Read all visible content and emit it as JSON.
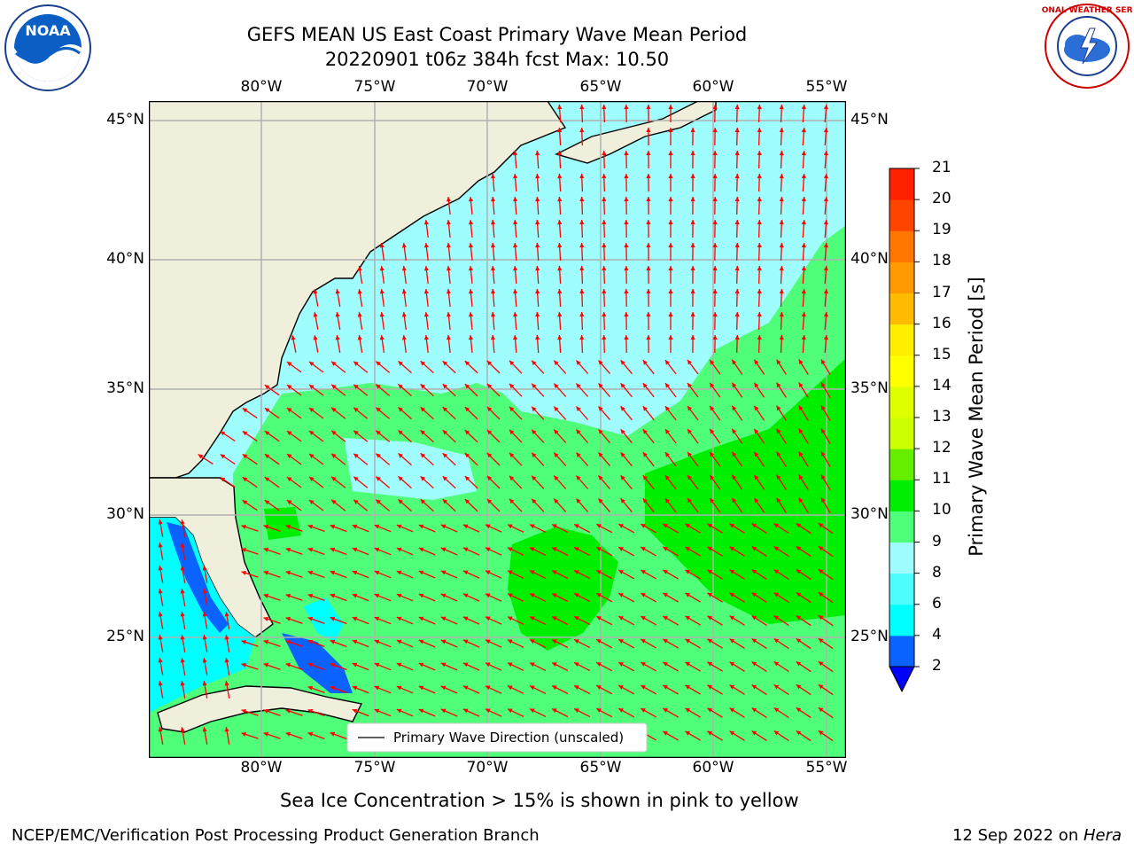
{
  "title": {
    "line1": "GEFS MEAN US East Coast Primary Wave Mean Period",
    "line2": "20220901 t06z 384h fcst   Max: 10.50"
  },
  "logos": {
    "left": {
      "text": "NOAA",
      "icon": "noaa-logo",
      "ring_text": "NATIONAL OCEANIC AND ATMOSPHERIC ADMINISTRATION · U.S. DEPARTMENT OF COMMERCE"
    },
    "right": {
      "text": "NATIONAL WEATHER SERVICE",
      "icon": "nws-logo"
    }
  },
  "map": {
    "lon_labels": [
      "80°W",
      "75°W",
      "70°W",
      "65°W",
      "60°W",
      "55°W"
    ],
    "lat_labels": [
      "45°N",
      "40°N",
      "35°N",
      "30°N",
      "25°N"
    ],
    "legend_label": "Primary Wave Direction (unscaled)",
    "land_color": "#efefdc",
    "arrow_color": "#ff0000",
    "grid": true,
    "projection": "equirectangular"
  },
  "colorbar": {
    "label": "Primary Wave Mean Period [s]",
    "ticks": [
      "2",
      "4",
      "6",
      "8",
      "9",
      "10",
      "11",
      "12",
      "13",
      "14",
      "15",
      "16",
      "17",
      "18",
      "19",
      "20",
      "21"
    ],
    "colors": [
      "#0a62ff",
      "#00ffff",
      "#4dfdfd",
      "#a0fdfd",
      "#4fff79",
      "#00ef00",
      "#66ee00",
      "#ccff00",
      "#ddff00",
      "#ffff00",
      "#ffee00",
      "#ffbb00",
      "#ff9900",
      "#ff7700",
      "#ff4400",
      "#ff2200",
      "#ff0000"
    ],
    "underflow_color": "#0000ff"
  },
  "footer": {
    "note": "Sea Ice Concentration > 15% is shown in pink to yellow",
    "left": "NCEP/EMC/Verification Post Processing Product Generation Branch",
    "date": "12 Sep 2022 on ",
    "machine": "Hera"
  }
}
